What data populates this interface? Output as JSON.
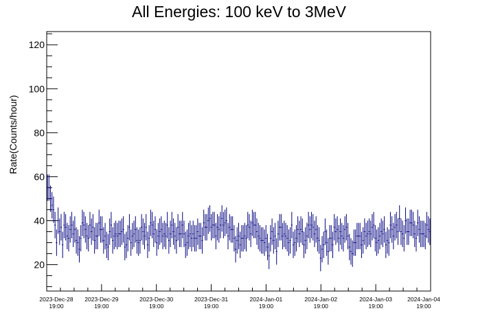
{
  "chart_data": {
    "type": "scatter",
    "style": "error-bars",
    "title": "All Energies:  100 keV to 3MeV",
    "xlabel": "",
    "ylabel": "Rate(Counts/hour)",
    "ylim": [
      8,
      126
    ],
    "yticks": [
      20,
      40,
      60,
      80,
      100,
      120
    ],
    "series_color": "#000080",
    "x_tick_labels": [
      {
        "date": "2023-Dec-28",
        "time": "19:00"
      },
      {
        "date": "2023-Dec-29",
        "time": "19:00"
      },
      {
        "date": "2023-Dec-30",
        "time": "19:00"
      },
      {
        "date": "2023-Dec-31",
        "time": "19:00"
      },
      {
        "date": "2024-Jan-01",
        "time": "19:00"
      },
      {
        "date": "2024-Jan-02",
        "time": "19:00"
      },
      {
        "date": "2024-Jan-03",
        "time": "19:00"
      },
      {
        "date": "2024-Jan-04",
        "time": "19:00"
      }
    ],
    "x_range": [
      "2023-12-28 19:00",
      "2024-01-04 19:00"
    ],
    "bin": "1 hour",
    "series": [
      {
        "values": [
          55,
          55,
          50,
          47,
          45,
          38,
          30,
          40,
          35,
          37,
          29,
          38,
          37,
          33,
          32,
          36,
          38,
          34,
          36,
          31,
          30,
          27,
          32,
          39,
          38,
          36,
          33,
          32,
          38,
          35,
          37,
          31,
          33,
          33,
          39,
          36,
          36,
          31,
          33,
          29,
          28,
          35,
          38,
          31,
          33,
          34,
          33,
          34,
          34,
          35,
          36,
          28,
          29,
          32,
          37,
          30,
          33,
          34,
          36,
          31,
          30,
          31,
          37,
          35,
          33,
          37,
          29,
          32,
          39,
          38,
          34,
          36,
          30,
          33,
          35,
          36,
          33,
          34,
          33,
          38,
          31,
          34,
          38,
          35,
          33,
          31,
          37,
          34,
          34,
          38,
          34,
          29,
          30,
          33,
          34,
          32,
          34,
          32,
          32,
          35,
          33,
          33,
          31,
          39,
          37,
          37,
          40,
          41,
          37,
          38,
          38,
          33,
          37,
          36,
          38,
          41,
          38,
          39,
          40,
          33,
          37,
          36,
          36,
          32,
          27,
          31,
          33,
          29,
          32,
          32,
          33,
          32,
          38,
          37,
          34,
          39,
          38,
          38,
          35,
          33,
          32,
          31,
          31,
          30,
          32,
          28,
          24,
          32,
          35,
          31,
          33,
          26,
          34,
          37,
          37,
          33,
          34,
          33,
          32,
          30,
          31,
          38,
          29,
          30,
          32,
          36,
          34,
          36,
          35,
          29,
          31,
          33,
          38,
          36,
          38,
          37,
          34,
          36,
          32,
          31,
          23,
          27,
          29,
          35,
          30,
          26,
          32,
          32,
          29,
          37,
          35,
          36,
          32,
          35,
          33,
          32,
          36,
          37,
          33,
          28,
          26,
          25,
          30,
          30,
          33,
          33,
          33,
          29,
          31,
          35,
          33,
          34,
          35,
          34,
          37,
          38,
          32,
          30,
          31,
          33,
          35,
          34,
          36,
          29,
          31,
          30,
          38,
          36,
          33,
          37,
          38,
          35,
          41,
          35,
          34,
          32,
          40,
          35,
          35,
          39,
          39,
          38,
          34,
          32,
          39,
          36,
          34,
          34,
          34,
          33,
          38,
          36,
          35
        ],
        "errors": 6
      }
    ]
  }
}
